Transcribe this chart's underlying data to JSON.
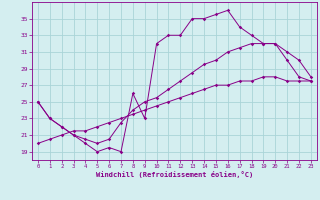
{
  "xlabel": "Windchill (Refroidissement éolien,°C)",
  "x_values": [
    0,
    1,
    2,
    3,
    4,
    5,
    6,
    7,
    8,
    9,
    10,
    11,
    12,
    13,
    14,
    15,
    16,
    17,
    18,
    19,
    20,
    21,
    22,
    23
  ],
  "line1": [
    25,
    23,
    22,
    21,
    20,
    19,
    19.5,
    19,
    26,
    23,
    32,
    33,
    33,
    35,
    35,
    35.5,
    36,
    34,
    33,
    32,
    32,
    30,
    28,
    27.5
  ],
  "line2": [
    25,
    23,
    22,
    21,
    20.5,
    20,
    20.5,
    22.5,
    24,
    25,
    25.5,
    26.5,
    27.5,
    28.5,
    29.5,
    30,
    31,
    31.5,
    32,
    32,
    32,
    31,
    30,
    28
  ],
  "line3": [
    20,
    20.5,
    21,
    21.5,
    21.5,
    22,
    22.5,
    23,
    23.5,
    24,
    24.5,
    25,
    25.5,
    26,
    26.5,
    27,
    27,
    27.5,
    27.5,
    28,
    28,
    27.5,
    27.5,
    27.5
  ],
  "line_color": "#880088",
  "bg_color": "#d4eef0",
  "grid_color": "#aad4d8",
  "ylim": [
    18,
    37
  ],
  "xlim": [
    -0.5,
    23.5
  ],
  "yticks": [
    19,
    21,
    23,
    25,
    27,
    29,
    31,
    33,
    35
  ],
  "xticks": [
    0,
    1,
    2,
    3,
    4,
    5,
    6,
    7,
    8,
    9,
    10,
    11,
    12,
    13,
    14,
    15,
    16,
    17,
    18,
    19,
    20,
    21,
    22,
    23
  ]
}
